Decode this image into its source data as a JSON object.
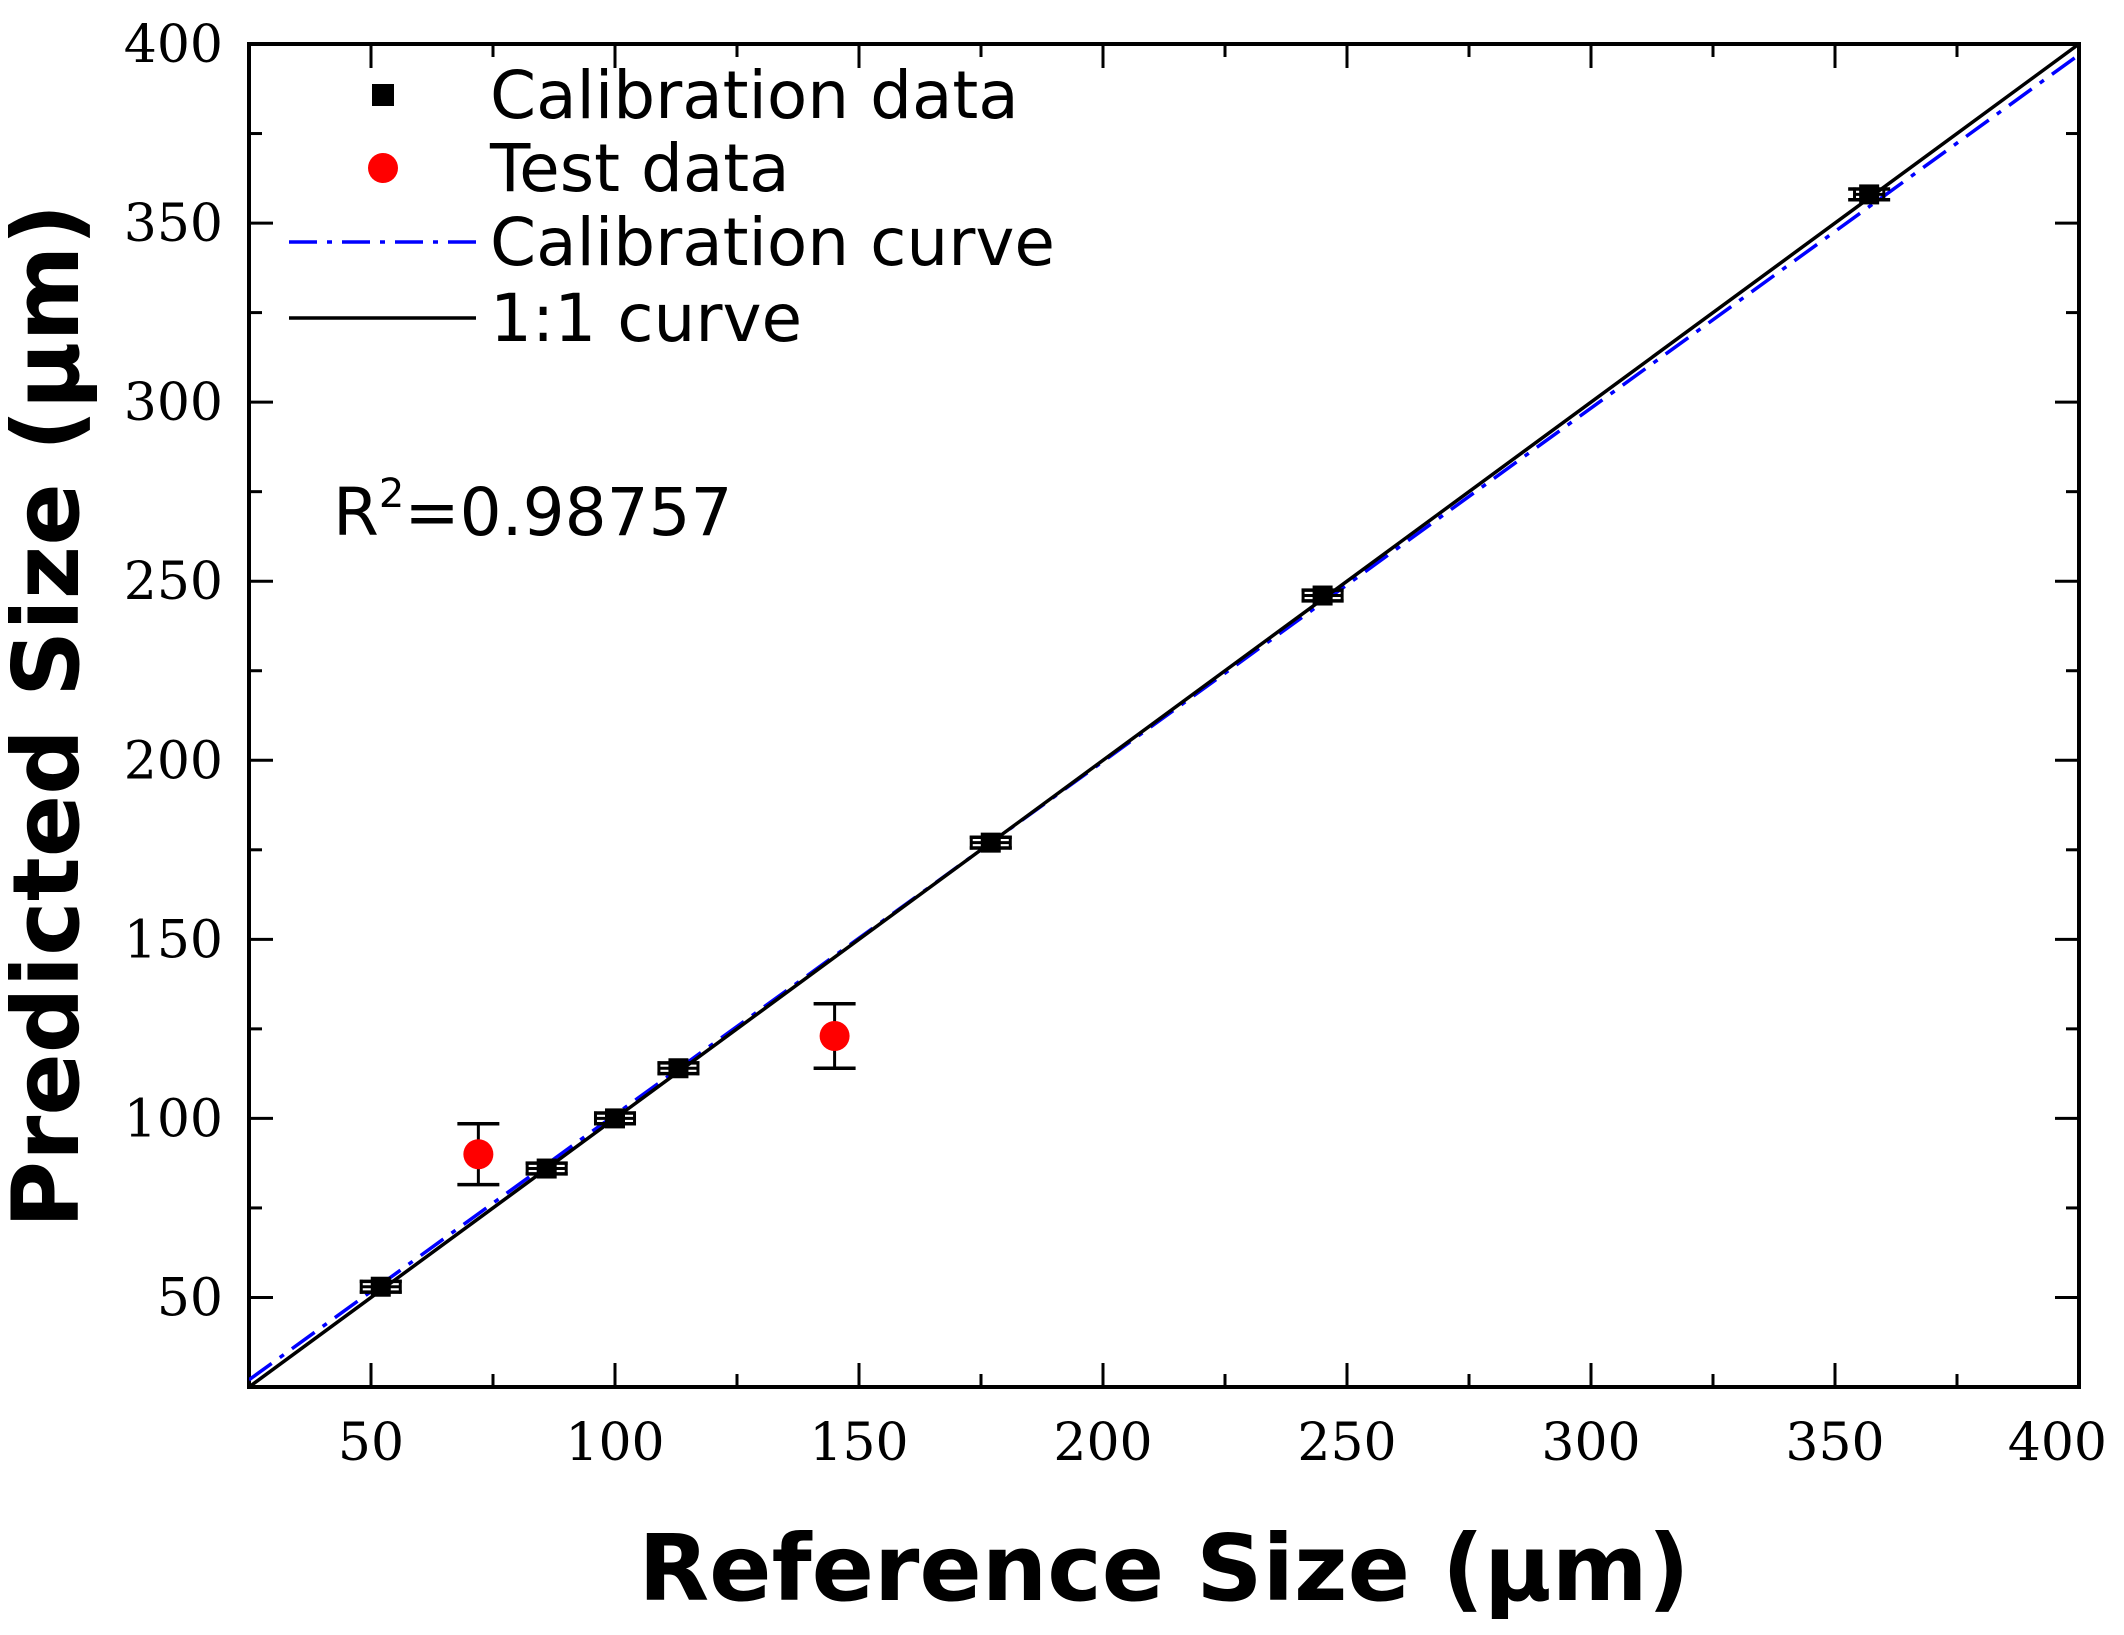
{
  "chart_data": {
    "type": "scatter",
    "xlabel": "Reference Size (μm)",
    "ylabel": "Predicted Size (μm)",
    "xlim": [
      25,
      400
    ],
    "ylim": [
      25,
      400
    ],
    "x_ticks": [
      50,
      100,
      150,
      200,
      250,
      300,
      350,
      400
    ],
    "y_ticks": [
      50,
      100,
      150,
      200,
      250,
      300,
      350,
      400
    ],
    "x_tick_labels": [
      "50",
      "100",
      "150",
      "200",
      "250",
      "300",
      "350",
      "400"
    ],
    "y_tick_labels": [
      "50",
      "100",
      "150",
      "200",
      "250",
      "300",
      "350",
      "400"
    ],
    "grid": false,
    "legend_position": "top-left",
    "series": [
      {
        "name": "Calibration data",
        "kind": "points",
        "marker": "square",
        "color": "#000000",
        "x": [
          52,
          86,
          100,
          113,
          177,
          245,
          357
        ],
        "y": [
          53,
          86,
          100,
          114,
          177,
          246,
          358
        ],
        "x_error": [
          4,
          4,
          4,
          4,
          4,
          4,
          3
        ],
        "y_error": [
          1.5,
          1.5,
          1.5,
          1.5,
          1.5,
          1.5,
          1.5
        ]
      },
      {
        "name": "Test data",
        "kind": "points",
        "marker": "circle",
        "color": "#ff0000",
        "x": [
          72,
          145
        ],
        "y": [
          90,
          123
        ],
        "y_error": [
          8.5,
          9
        ]
      },
      {
        "name": "Calibration curve",
        "kind": "line",
        "style": "dash-dot",
        "color": "#0000ff",
        "x": [
          25,
          400
        ],
        "y": [
          27,
          397
        ]
      },
      {
        "name": "1:1 curve",
        "kind": "line",
        "style": "solid",
        "color": "#000000",
        "x": [
          25,
          400
        ],
        "y": [
          25,
          400
        ]
      }
    ],
    "annotation": {
      "base": "R",
      "superscript": "2",
      "value": "=0.98757"
    }
  }
}
